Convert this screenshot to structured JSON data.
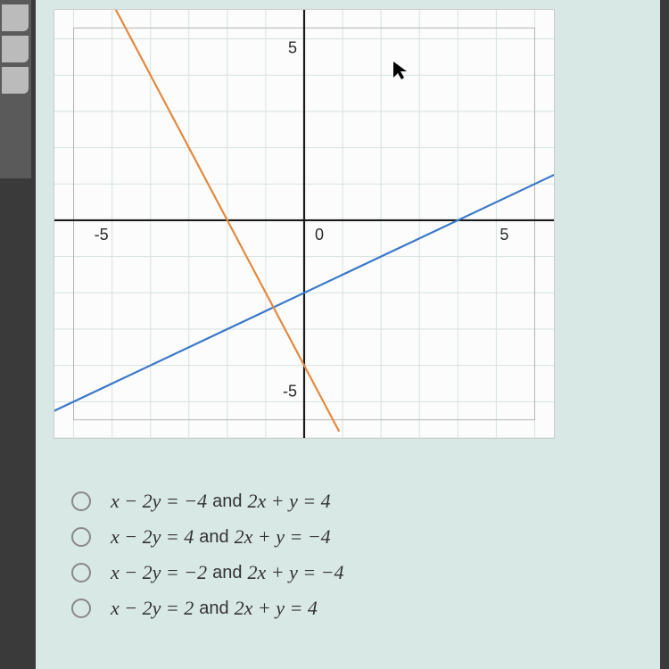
{
  "sidebar": {
    "tab_count": 3
  },
  "chart": {
    "type": "line",
    "xlim": [
      -6.5,
      6.5
    ],
    "ylim": [
      -6.0,
      5.8
    ],
    "xtick_labels": [
      {
        "v": -5,
        "t": "-5"
      },
      {
        "v": 0,
        "t": "0"
      },
      {
        "v": 5,
        "t": "5"
      }
    ],
    "ytick_labels": [
      {
        "v": -5,
        "t": "-5"
      },
      {
        "v": 5,
        "t": "5"
      }
    ],
    "grid_color": "#d5e2dd",
    "grid_step": 1,
    "axis_color": "#1a1a1a",
    "axis_width": 2.2,
    "inner_border_color": "#b5b5b5",
    "label_fontsize": 18,
    "label_color": "#2a2a2a",
    "background_color": "#fcfcfc",
    "lines": [
      {
        "name": "blue",
        "color": "#3b79c9",
        "width": 2.2,
        "p1": [
          -6.5,
          -5.25
        ],
        "p2": [
          6.5,
          1.25
        ]
      },
      {
        "name": "orange",
        "color": "#e28a3f",
        "width": 2.2,
        "p1": [
          -5.0,
          6.0
        ],
        "p2": [
          0.9,
          -5.8
        ]
      }
    ],
    "cursor_pos": [
      2.3,
      4.4
    ]
  },
  "options": [
    {
      "eq1": "x − 2y = −4",
      "eq2": "2x + y = 4"
    },
    {
      "eq1": "x − 2y = 4",
      "eq2": "2x + y = −4"
    },
    {
      "eq1": "x − 2y = −2",
      "eq2": "2x + y = −4"
    },
    {
      "eq1": "x − 2y = 2",
      "eq2": "2x + y = 4"
    }
  ]
}
